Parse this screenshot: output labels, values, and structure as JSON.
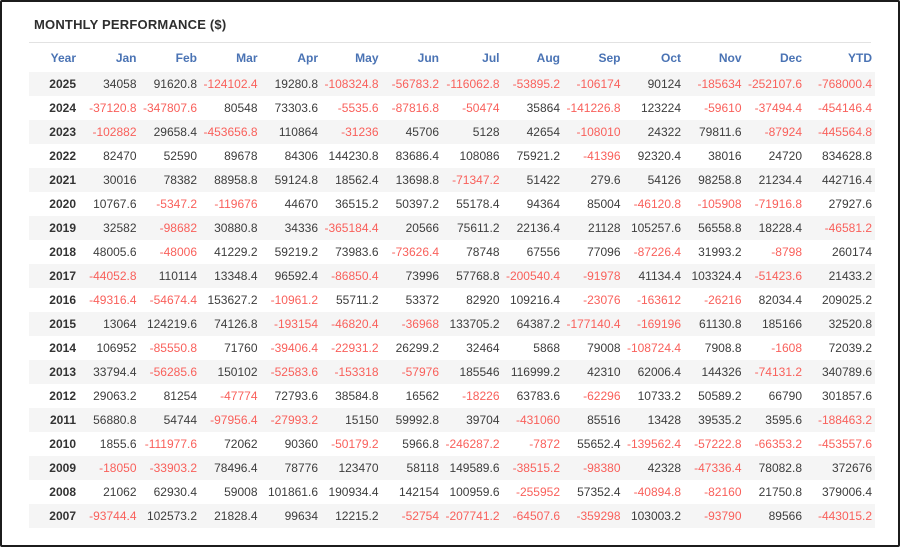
{
  "title": "MONTHLY PERFORMANCE ($)",
  "colors": {
    "border": "#1c1c1c",
    "title_text": "#2e2e2e",
    "divider": "#e2e2e2",
    "header_text": "#4a73b4",
    "value_text": "#3d3d3d",
    "year_text": "#333333",
    "negative_text": "#f9605b",
    "row_stripe": "#f5f5f5"
  },
  "table": {
    "columns": [
      "Year",
      "Jan",
      "Feb",
      "Mar",
      "Apr",
      "May",
      "Jun",
      "Jul",
      "Aug",
      "Sep",
      "Oct",
      "Nov",
      "Dec",
      "YTD"
    ],
    "rows": [
      {
        "year": "2025",
        "values": [
          "34058",
          "91620.8",
          "-124102.4",
          "19280.8",
          "-108324.8",
          "-56783.2",
          "-116062.8",
          "-53895.2",
          "-106174",
          "90124",
          "-185634",
          "-252107.6",
          "-768000.4"
        ]
      },
      {
        "year": "2024",
        "values": [
          "-37120.8",
          "-347807.6",
          "80548",
          "73303.6",
          "-5535.6",
          "-87816.8",
          "-50474",
          "35864",
          "-141226.8",
          "123224",
          "-59610",
          "-37494.4",
          "-454146.4"
        ]
      },
      {
        "year": "2023",
        "values": [
          "-102882",
          "29658.4",
          "-453656.8",
          "110864",
          "-31236",
          "45706",
          "5128",
          "42654",
          "-108010",
          "24322",
          "79811.6",
          "-87924",
          "-445564.8"
        ]
      },
      {
        "year": "2022",
        "values": [
          "82470",
          "52590",
          "89678",
          "84306",
          "144230.8",
          "83686.4",
          "108086",
          "75921.2",
          "-41396",
          "92320.4",
          "38016",
          "24720",
          "834628.8"
        ]
      },
      {
        "year": "2021",
        "values": [
          "30016",
          "78382",
          "88958.8",
          "59124.8",
          "18562.4",
          "13698.8",
          "-71347.2",
          "51422",
          "279.6",
          "54126",
          "98258.8",
          "21234.4",
          "442716.4"
        ]
      },
      {
        "year": "2020",
        "values": [
          "10767.6",
          "-5347.2",
          "-119676",
          "44670",
          "36515.2",
          "50397.2",
          "55178.4",
          "94364",
          "85004",
          "-46120.8",
          "-105908",
          "-71916.8",
          "27927.6"
        ]
      },
      {
        "year": "2019",
        "values": [
          "32582",
          "-98682",
          "30880.8",
          "34336",
          "-365184.4",
          "20566",
          "75611.2",
          "22136.4",
          "21128",
          "105257.6",
          "56558.8",
          "18228.4",
          "-46581.2"
        ]
      },
      {
        "year": "2018",
        "values": [
          "48005.6",
          "-48006",
          "41229.2",
          "59219.2",
          "73983.6",
          "-73626.4",
          "78748",
          "67556",
          "77096",
          "-87226.4",
          "31993.2",
          "-8798",
          "260174"
        ]
      },
      {
        "year": "2017",
        "values": [
          "-44052.8",
          "110114",
          "13348.4",
          "96592.4",
          "-86850.4",
          "73996",
          "57768.8",
          "-200540.4",
          "-91978",
          "41134.4",
          "103324.4",
          "-51423.6",
          "21433.2"
        ]
      },
      {
        "year": "2016",
        "values": [
          "-49316.4",
          "-54674.4",
          "153627.2",
          "-10961.2",
          "55711.2",
          "53372",
          "82920",
          "109216.4",
          "-23076",
          "-163612",
          "-26216",
          "82034.4",
          "209025.2"
        ]
      },
      {
        "year": "2015",
        "values": [
          "13064",
          "124219.6",
          "74126.8",
          "-193154",
          "-46820.4",
          "-36968",
          "133705.2",
          "64387.2",
          "-177140.4",
          "-169196",
          "61130.8",
          "185166",
          "32520.8"
        ]
      },
      {
        "year": "2014",
        "values": [
          "106952",
          "-85550.8",
          "71760",
          "-39406.4",
          "-22931.2",
          "26299.2",
          "32464",
          "5868",
          "79008",
          "-108724.4",
          "7908.8",
          "-1608",
          "72039.2"
        ]
      },
      {
        "year": "2013",
        "values": [
          "33794.4",
          "-56285.6",
          "150102",
          "-52583.6",
          "-153318",
          "-57976",
          "185546",
          "116999.2",
          "42310",
          "62006.4",
          "144326",
          "-74131.2",
          "340789.6"
        ]
      },
      {
        "year": "2012",
        "values": [
          "29063.2",
          "81254",
          "-47774",
          "72793.6",
          "38584.8",
          "16562",
          "-18226",
          "63783.6",
          "-62296",
          "10733.2",
          "50589.2",
          "66790",
          "301857.6"
        ]
      },
      {
        "year": "2011",
        "values": [
          "56880.8",
          "54744",
          "-97956.4",
          "-27993.2",
          "15150",
          "59992.8",
          "39704",
          "-431060",
          "85516",
          "13428",
          "39535.2",
          "3595.6",
          "-188463.2"
        ]
      },
      {
        "year": "2010",
        "values": [
          "1855.6",
          "-111977.6",
          "72062",
          "90360",
          "-50179.2",
          "5966.8",
          "-246287.2",
          "-7872",
          "55652.4",
          "-139562.4",
          "-57222.8",
          "-66353.2",
          "-453557.6"
        ]
      },
      {
        "year": "2009",
        "values": [
          "-18050",
          "-33903.2",
          "78496.4",
          "78776",
          "123470",
          "58118",
          "149589.6",
          "-38515.2",
          "-98380",
          "42328",
          "-47336.4",
          "78082.8",
          "372676"
        ]
      },
      {
        "year": "2008",
        "values": [
          "21062",
          "62930.4",
          "59008",
          "101861.6",
          "190934.4",
          "142154",
          "100959.6",
          "-255952",
          "57352.4",
          "-40894.8",
          "-82160",
          "21750.8",
          "379006.4"
        ]
      },
      {
        "year": "2007",
        "values": [
          "-93744.4",
          "102573.2",
          "21828.4",
          "99634",
          "12215.2",
          "-52754",
          "-207741.2",
          "-64507.6",
          "-359298",
          "103003.2",
          "-93790",
          "89566",
          "-443015.2"
        ]
      }
    ]
  }
}
